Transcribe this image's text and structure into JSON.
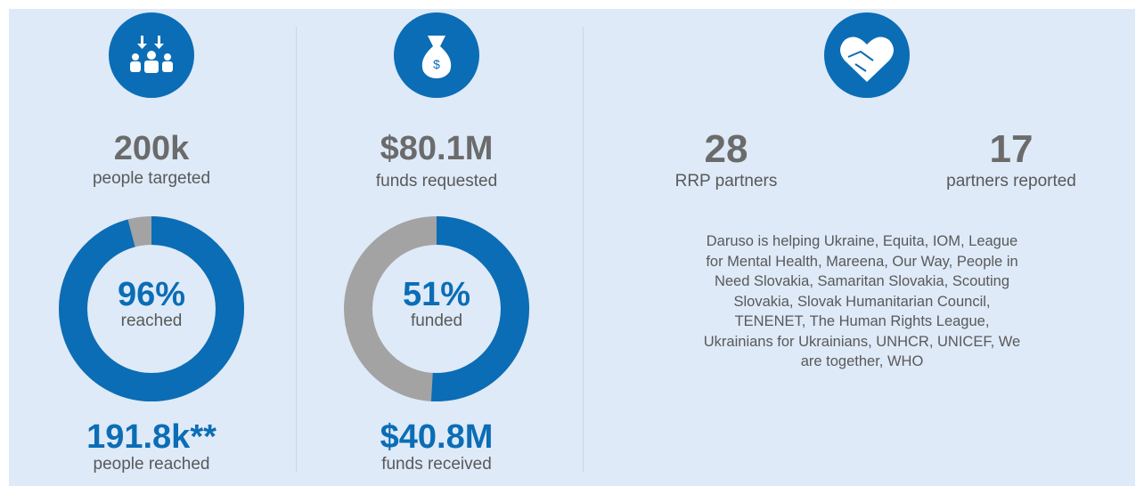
{
  "people": {
    "targeted_value": "200k",
    "targeted_label": "people targeted",
    "percent": {
      "value": 96,
      "label": "96%"
    },
    "percent_caption": "reached",
    "reached_value": "191.8k**",
    "reached_label": "people reached"
  },
  "funds": {
    "requested_value": "$80.1M",
    "requested_label": "funds requested",
    "percent": {
      "value": 51,
      "label": "51%"
    },
    "percent_caption": "funded",
    "received_value": "$40.8M",
    "received_label": "funds received"
  },
  "partners": {
    "rrp_value": 28,
    "rrp_label": "RRP partners",
    "reported_value": 17,
    "reported_label": "partners reported",
    "list": "Daruso is helping Ukraine, Equita, IOM, League for Mental Health, Mareena, Our Way, People in Need Slovakia, Samaritan Slovakia, Scouting Slovakia, Slovak Humanitarian Council, TENENET, The Human Rights League, Ukrainians for Ukrainians, UNHCR, UNICEF, We are together, WHO"
  }
}
